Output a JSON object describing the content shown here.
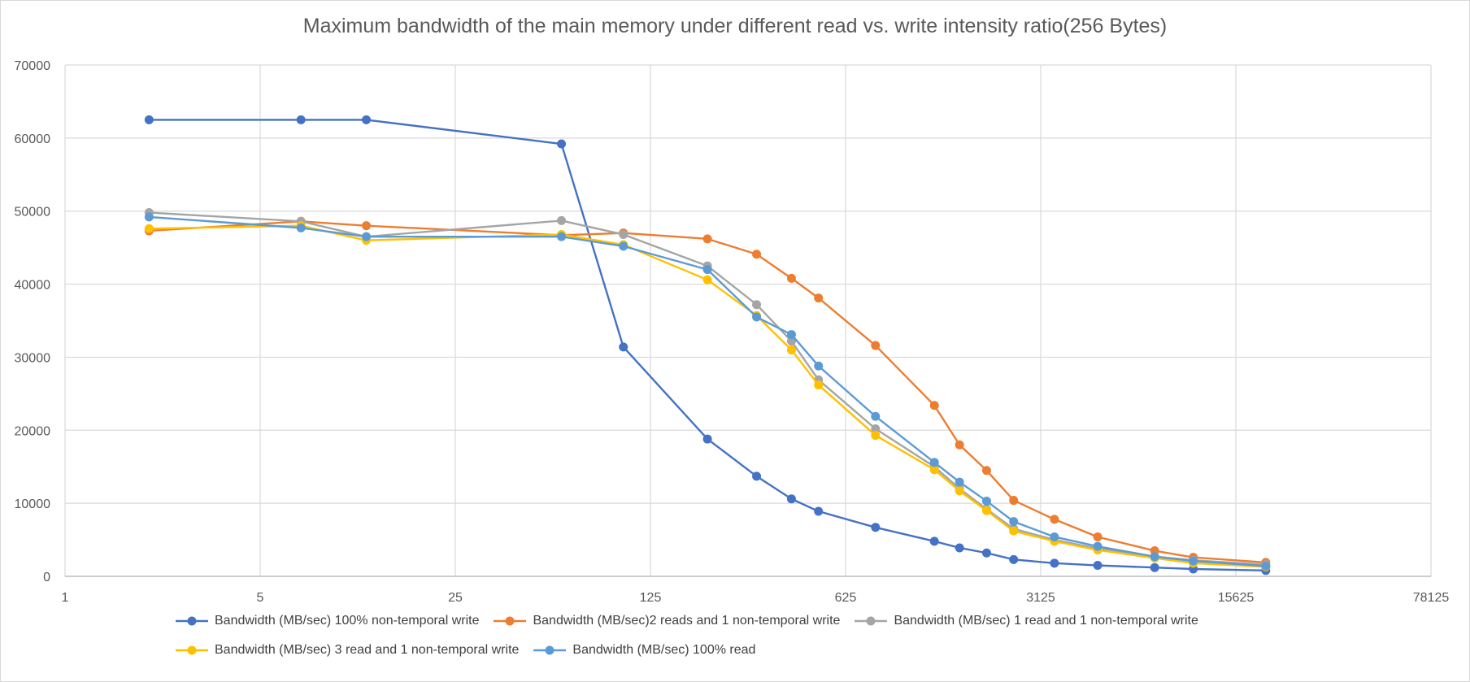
{
  "chart_data": {
    "type": "line",
    "title": "Maximum bandwidth of the main memory under different read vs. write intensity ratio(256 Bytes)",
    "xlabel": "",
    "ylabel": "",
    "x_scale": "log5",
    "x_ticks": [
      "1",
      "5",
      "25",
      "125",
      "625",
      "3125",
      "15625",
      "78125"
    ],
    "xlim": [
      1,
      78125
    ],
    "y_ticks": [
      "0",
      "10000",
      "20000",
      "30000",
      "40000",
      "50000",
      "60000",
      "70000"
    ],
    "ylim": [
      0,
      70000
    ],
    "grid": true,
    "legend_position": "bottom",
    "x": [
      2,
      7,
      12,
      60,
      100,
      200,
      300,
      400,
      500,
      600,
      800,
      1000,
      1300,
      1600,
      2000,
      2500,
      3500,
      5000,
      8000,
      11000,
      20000
    ],
    "series": [
      {
        "name": "Bandwidth (MB/sec) 100% non-temporal write",
        "color": "#4472C4",
        "x": [
          2,
          7,
          12,
          60,
          100,
          200,
          300,
          400,
          500,
          800,
          1300,
          1600,
          2000,
          2500,
          3500,
          5000,
          8000,
          11000,
          20000
        ],
        "values": [
          62500,
          62500,
          62500,
          59200,
          31400,
          18800,
          13700,
          10600,
          8900,
          6700,
          4800,
          3900,
          3200,
          2300,
          1800,
          1500,
          1200,
          1000,
          800
        ]
      },
      {
        "name": "Bandwidth (MB/sec)2 reads and 1 non-temporal write",
        "color": "#ED7D31",
        "x": [
          2,
          7,
          12,
          60,
          100,
          200,
          300,
          400,
          500,
          800,
          1300,
          1600,
          2000,
          2500,
          3500,
          5000,
          8000,
          11000,
          20000
        ],
        "values": [
          47300,
          48600,
          48000,
          46700,
          47000,
          46200,
          44100,
          40800,
          38100,
          31600,
          23400,
          18000,
          14500,
          10400,
          7800,
          5400,
          3500,
          2600,
          1900
        ]
      },
      {
        "name": "Bandwidth (MB/sec) 1 read and 1 non-temporal write",
        "color": "#A5A5A5",
        "x": [
          2,
          7,
          12,
          60,
          100,
          200,
          300,
          400,
          500,
          800,
          1300,
          1600,
          2000,
          2500,
          3500,
          5000,
          8000,
          11000,
          20000
        ],
        "values": [
          49800,
          48600,
          46500,
          48700,
          46800,
          42500,
          37200,
          32200,
          26900,
          20200,
          15000,
          12000,
          9200,
          6500,
          5000,
          3800,
          2700,
          2200,
          1600
        ]
      },
      {
        "name": "Bandwidth (MB/sec) 3 read and 1 non-temporal write",
        "color": "#FFC000",
        "x": [
          2,
          7,
          12,
          60,
          100,
          200,
          300,
          400,
          500,
          800,
          1300,
          1600,
          2000,
          2500,
          3500,
          5000,
          8000,
          11000,
          20000
        ],
        "values": [
          47600,
          48000,
          46000,
          46800,
          45400,
          40600,
          35700,
          31000,
          26200,
          19300,
          14600,
          11700,
          9000,
          6200,
          4800,
          3600,
          2500,
          1800,
          1300
        ]
      },
      {
        "name": "Bandwidth (MB/sec) 100% read",
        "color": "#5B9BD5",
        "x": [
          2,
          7,
          12,
          60,
          100,
          200,
          300,
          400,
          500,
          800,
          1300,
          1600,
          2000,
          2500,
          3500,
          5000,
          8000,
          11000,
          20000
        ],
        "values": [
          49200,
          47700,
          46500,
          46500,
          45200,
          42000,
          35500,
          33100,
          28800,
          21900,
          15600,
          12900,
          10300,
          7500,
          5400,
          4100,
          2700,
          2100,
          1400
        ]
      }
    ]
  }
}
